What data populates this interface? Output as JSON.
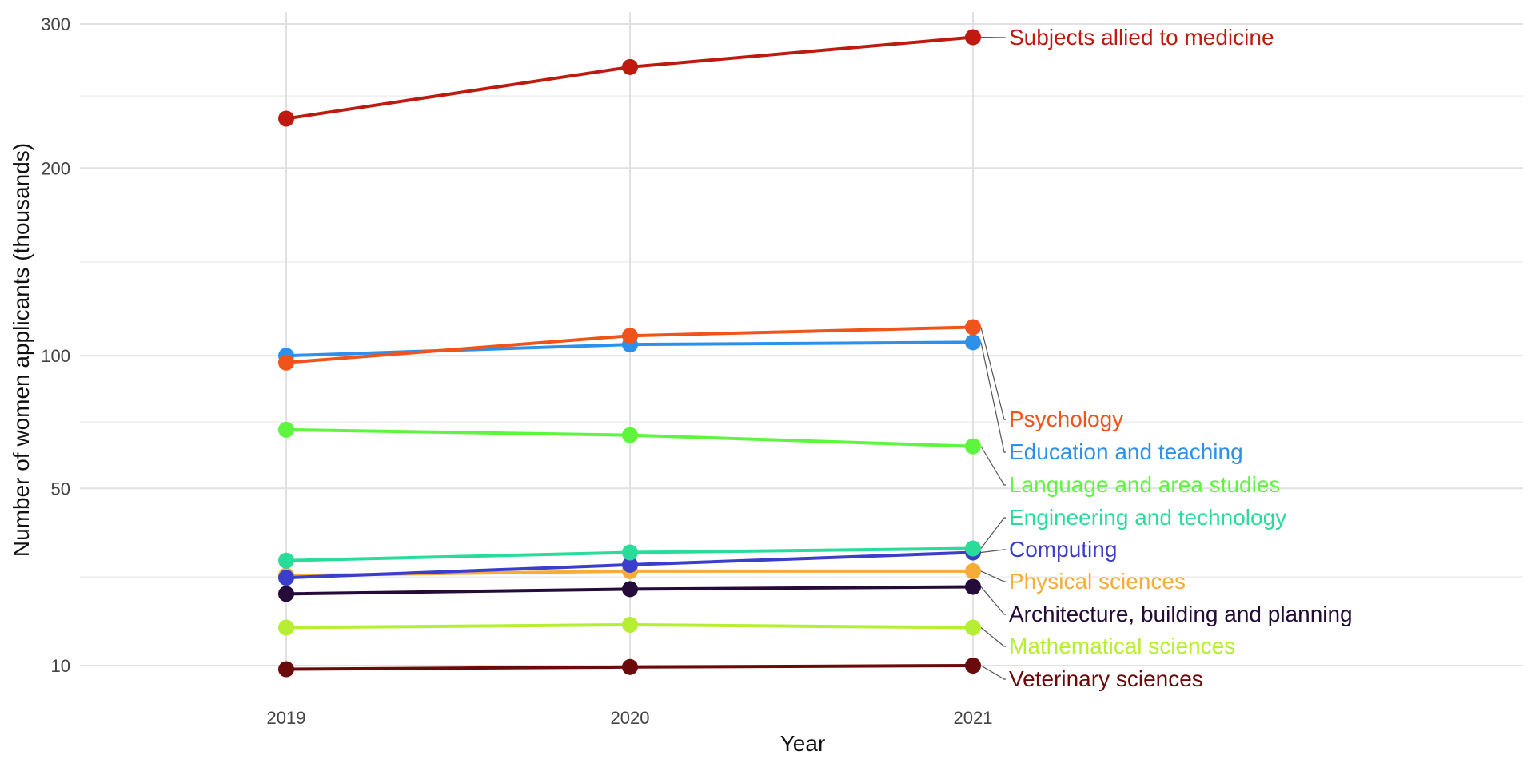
{
  "chart_data": {
    "type": "line",
    "title": "",
    "xlabel": "Year",
    "ylabel": "Number of women applicants (thousands)",
    "x": [
      "2019",
      "2020",
      "2021"
    ],
    "y_ticks": [
      10,
      50,
      100,
      200,
      300
    ],
    "y_tick_labels": [
      "10",
      "50",
      "100",
      "200",
      "300"
    ],
    "ylim": [
      9,
      305
    ],
    "y_scale": "square-root",
    "grid": true,
    "legend": "direct labels at right end of lines",
    "series": [
      {
        "name": "Subjects allied to medicine",
        "color": "#bf1a0f",
        "values": [
          232,
          268,
          290
        ]
      },
      {
        "name": "Psychology",
        "color": "#f0541a",
        "values": [
          97,
          109,
          113
        ]
      },
      {
        "name": "Education and teaching",
        "color": "#2d91ec",
        "values": [
          100,
          105,
          106
        ]
      },
      {
        "name": "Language and area studies",
        "color": "#5ef53f",
        "values": [
          70,
          68,
          64
        ]
      },
      {
        "name": "Engineering and technology",
        "color": "#29dc9a",
        "values": [
          30,
          32,
          33
        ]
      },
      {
        "name": "Computing",
        "color": "#3b3dcb",
        "values": [
          26,
          29,
          32
        ]
      },
      {
        "name": "Physical sciences",
        "color": "#f5ac38",
        "values": [
          26.5,
          27.5,
          27.5
        ]
      },
      {
        "name": "Architecture, building and planning",
        "color": "#240b3a",
        "values": [
          22.5,
          23.5,
          24
        ]
      },
      {
        "name": "Mathematical sciences",
        "color": "#b6ee32",
        "values": [
          16,
          16.5,
          16
        ]
      },
      {
        "name": "Veterinary sciences",
        "color": "#6b0a0a",
        "values": [
          9.5,
          9.8,
          10
        ]
      }
    ]
  }
}
